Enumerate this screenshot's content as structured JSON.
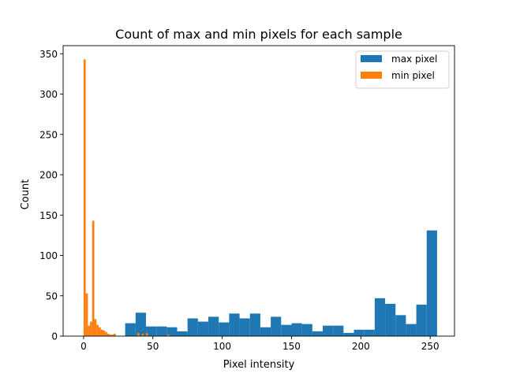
{
  "chart_data": {
    "type": "histogram",
    "title": "Count of max and min pixels for each sample",
    "xlabel": "Pixel intensity",
    "ylabel": "Count",
    "xlim": [
      -14.75,
      267.55
    ],
    "ylim": [
      0,
      360
    ],
    "xticks": [
      0,
      50,
      100,
      150,
      200,
      250
    ],
    "yticks": [
      0,
      50,
      100,
      150,
      200,
      250,
      300,
      350
    ],
    "grid": false,
    "legend_position": "top-right",
    "series": [
      {
        "name": "max pixel",
        "color": "#1f77b4",
        "bin_start": 30,
        "bin_width": 7.5,
        "values": [
          16,
          29,
          12,
          12,
          11,
          6,
          22,
          18,
          24,
          17,
          28,
          22,
          28,
          11,
          24,
          14,
          16,
          15,
          6,
          13,
          13,
          4,
          8,
          8,
          47,
          40,
          26,
          15,
          39,
          131
        ]
      },
      {
        "name": "min pixel",
        "color": "#ff7f0e",
        "bin_start": 0,
        "bin_width": 1.55,
        "values": [
          343,
          53,
          13,
          18,
          143,
          21,
          14,
          11,
          8,
          7,
          5,
          3,
          2,
          2,
          3,
          0,
          0,
          0,
          0,
          0,
          0,
          0,
          0,
          0,
          0,
          4,
          0,
          3,
          0,
          4,
          0,
          0,
          0,
          0,
          0,
          0,
          0,
          0,
          0,
          2
        ]
      }
    ]
  }
}
